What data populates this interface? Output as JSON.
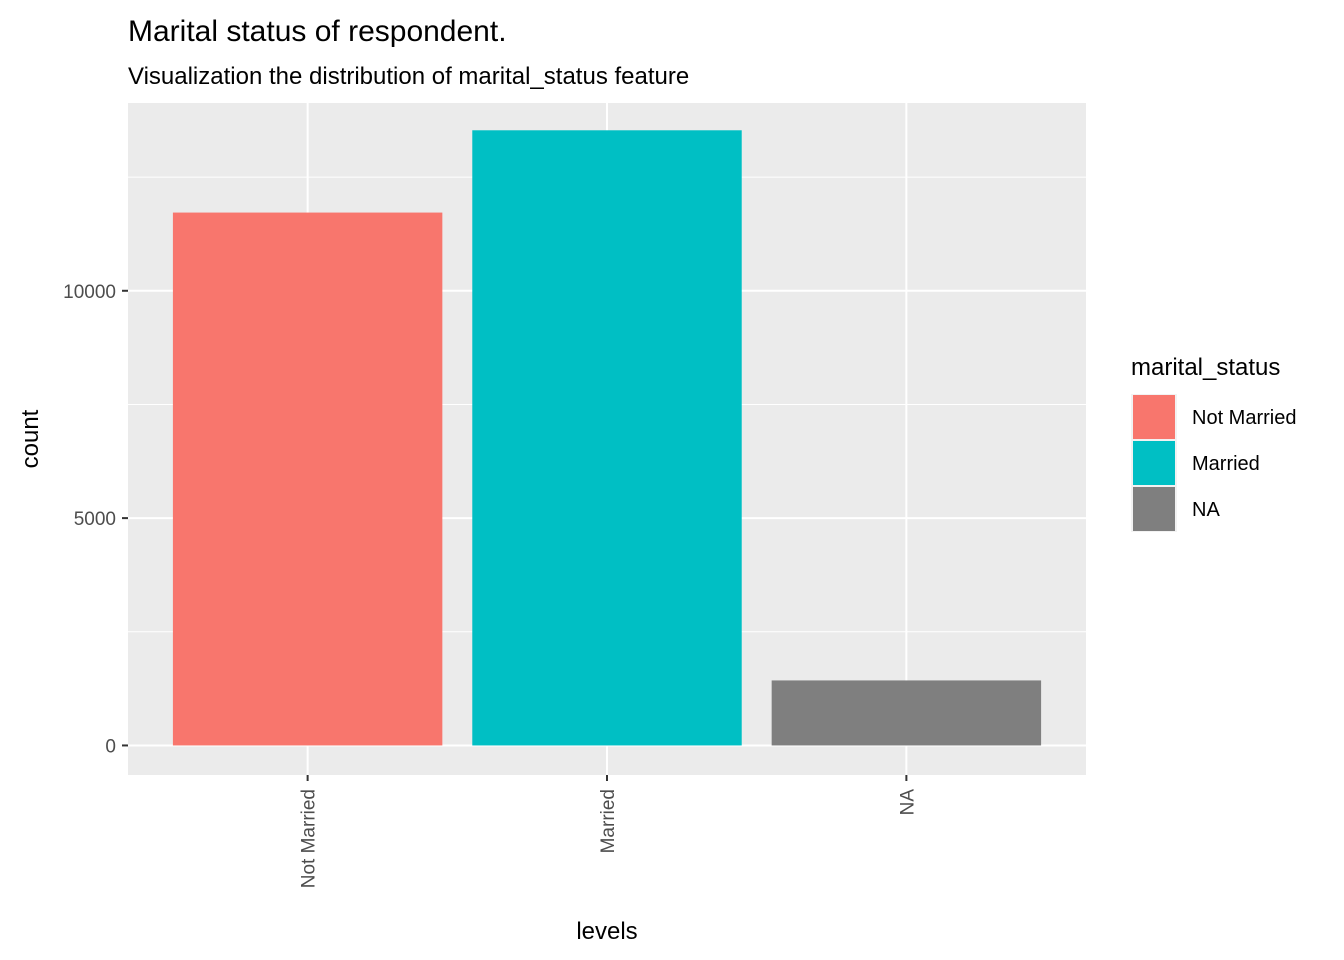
{
  "chart_data": {
    "type": "bar",
    "title": "Marital status of respondent.",
    "subtitle": "Visualization the distribution of marital_status feature",
    "xlabel": "levels",
    "ylabel": "count",
    "categories": [
      "Not Married",
      "Married",
      "NA"
    ],
    "values": [
      11720,
      13530,
      1430
    ],
    "colors": [
      "#F8766D",
      "#00BFC4",
      "#7F7F7F"
    ],
    "ylim": [
      -650,
      14130
    ],
    "yticks": [
      0,
      5000,
      10000
    ],
    "ytick_labels": [
      "0",
      "5000",
      "10000"
    ],
    "panel_background": "#EBEBEB",
    "grid": true,
    "legend": {
      "title": "marital_status",
      "position": "right",
      "entries": [
        "Not Married",
        "Married",
        "NA"
      ]
    }
  }
}
